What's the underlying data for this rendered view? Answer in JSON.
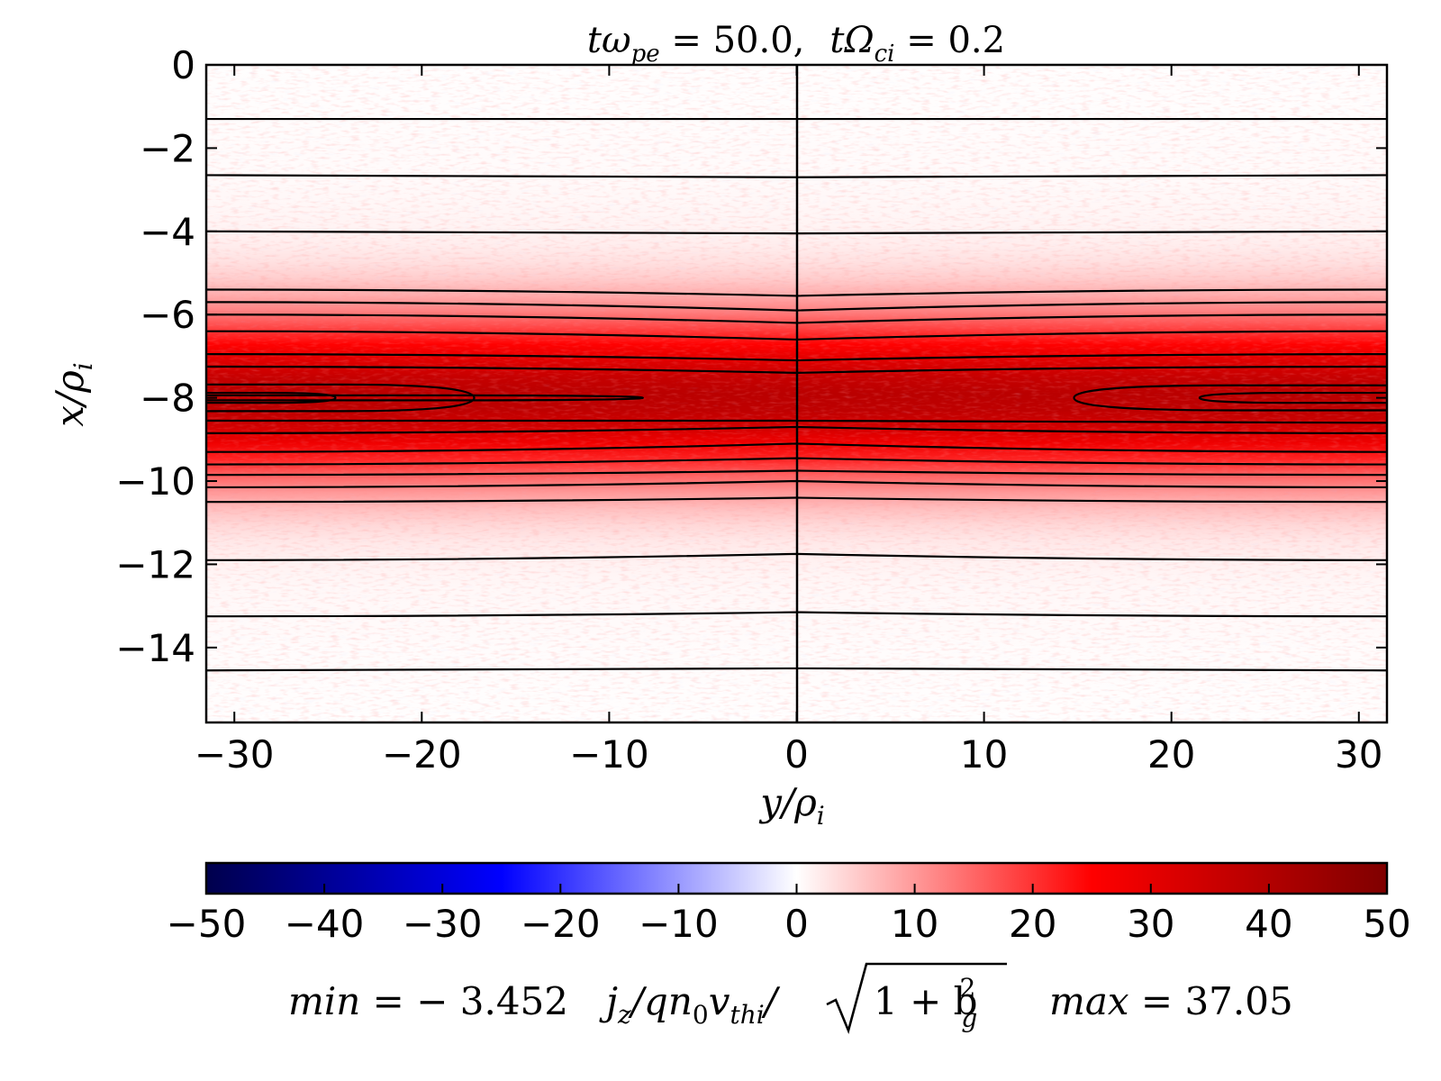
{
  "chart_data": {
    "type": "heatmap",
    "title": {
      "part1": "tω",
      "part1_sub": "pe",
      "part1_eq": " = 50.0,",
      "part2": "tΩ",
      "part2_sub": "ci",
      "part2_eq": " = 0.2"
    },
    "xlabel": {
      "main": "y/ρ",
      "sub": "i"
    },
    "ylabel": {
      "main": "x/ρ",
      "sub": "i"
    },
    "xlim": [
      -31.5,
      31.5
    ],
    "ylim": [
      -15.8,
      0
    ],
    "xticks": [
      -30,
      -20,
      -10,
      0,
      10,
      20,
      30
    ],
    "xtick_labels": [
      "−30",
      "−20",
      "−10",
      "0",
      "10",
      "20",
      "30"
    ],
    "yticks": [
      0,
      -2,
      -4,
      -6,
      -8,
      -10,
      -12,
      -14
    ],
    "ytick_labels": [
      "0",
      "−2",
      "−4",
      "−6",
      "−8",
      "−10",
      "−12",
      "−14"
    ],
    "field": {
      "description_value": "current density profile peaked at x = -8",
      "peak_x": -8,
      "peak_value": 37.05,
      "min_value": -3.452,
      "width": 1.9
    },
    "contour_lines": [
      {
        "x_left": -1.3,
        "x_mid": -1.3,
        "x_right": -1.3
      },
      {
        "x_left": -2.65,
        "x_mid": -2.7,
        "x_right": -2.65
      },
      {
        "x_left": -4.0,
        "x_mid": -4.05,
        "x_right": -4.0
      },
      {
        "x_left": -5.4,
        "x_mid": -5.55,
        "x_right": -5.4
      },
      {
        "x_left": -5.7,
        "x_mid": -5.9,
        "x_right": -5.7
      },
      {
        "x_left": -6.0,
        "x_mid": -6.2,
        "x_right": -6.0
      },
      {
        "x_left": -6.4,
        "x_mid": -6.6,
        "x_right": -6.4
      },
      {
        "x_left": -6.95,
        "x_mid": -7.1,
        "x_right": -6.95
      },
      {
        "x_left": -7.25,
        "x_mid": -7.4,
        "x_right": -7.25
      },
      {
        "x_left": -8.55,
        "x_mid": -8.55,
        "x_right": -8.6
      },
      {
        "x_left": -8.85,
        "x_mid": -8.7,
        "x_right": -8.85
      },
      {
        "x_left": -9.3,
        "x_mid": -9.1,
        "x_right": -9.3
      },
      {
        "x_left": -9.6,
        "x_mid": -9.45,
        "x_right": -9.6
      },
      {
        "x_left": -9.85,
        "x_mid": -9.75,
        "x_right": -9.85
      },
      {
        "x_left": -10.15,
        "x_mid": -10.0,
        "x_right": -10.15
      },
      {
        "x_left": -10.5,
        "x_mid": -10.4,
        "x_right": -10.5
      },
      {
        "x_left": -11.9,
        "x_mid": -11.75,
        "x_right": -11.9
      },
      {
        "x_left": -13.25,
        "x_mid": -13.15,
        "x_right": -13.25
      },
      {
        "x_left": -14.55,
        "x_mid": -14.5,
        "x_right": -14.55
      }
    ],
    "islands": [
      {
        "y_from": -31.5,
        "y_to": -17.2,
        "half_width": 0.32
      },
      {
        "y_from": -31.5,
        "y_to": -24.6,
        "half_width": 0.12
      },
      {
        "y_from": -31.5,
        "y_to": -8.2,
        "half_width": 0.06
      },
      {
        "y_from": 14.8,
        "y_to": 31.5,
        "half_width": 0.3
      },
      {
        "y_from": 21.5,
        "y_to": 31.5,
        "half_width": 0.12
      }
    ],
    "colorbar": {
      "range": [
        -50,
        50
      ],
      "ticks": [
        -50,
        -40,
        -30,
        -20,
        -10,
        0,
        10,
        20,
        30,
        40,
        50
      ],
      "tick_labels": [
        "−50",
        "−40",
        "−30",
        "−20",
        "−10",
        "0",
        "10",
        "20",
        "30",
        "40",
        "50"
      ],
      "colors": [
        "#00004c",
        "#0000ff",
        "#ffffff",
        "#ff0000",
        "#7f0000"
      ]
    },
    "caption": {
      "min_label": "min",
      "min_value": " = − 3.452",
      "quantity_j": "j",
      "quantity_j_sub": "z",
      "quantity_mid": "/qn",
      "quantity_n_sub": "0",
      "quantity_v": "v",
      "quantity_v_sub": "thi",
      "quantity_slash": "/",
      "sqrt_inner": "1 + b",
      "sqrt_sup": "2",
      "sqrt_sub": "g",
      "max_label": "max",
      "max_value": " = 37.05"
    }
  }
}
